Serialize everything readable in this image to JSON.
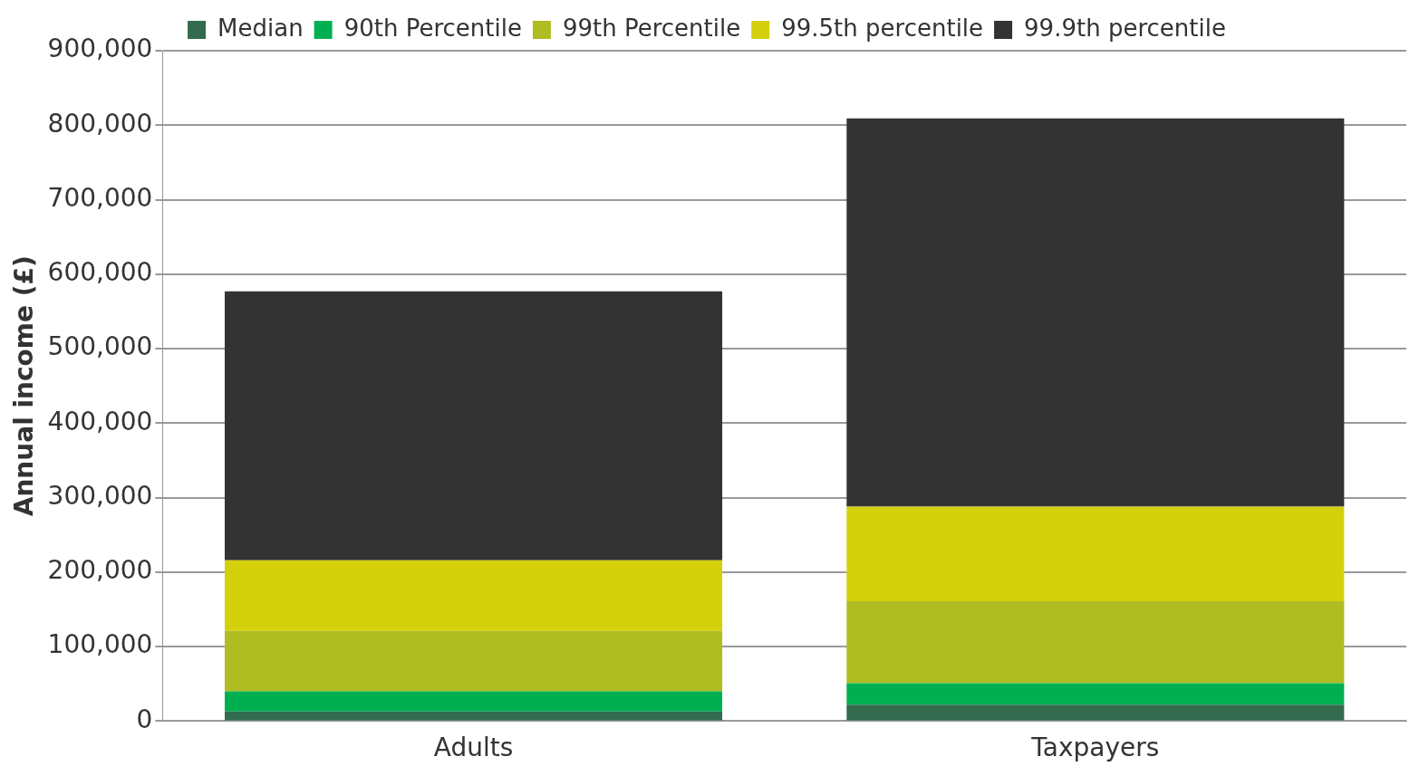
{
  "chart_data": {
    "type": "bar",
    "stacked": true,
    "ylabel": "Annual income (£)",
    "categories": [
      "Adults",
      "Taxpayers"
    ],
    "series": [
      {
        "name": "Median",
        "color": "#336b4f",
        "values": [
          13000,
          22000
        ]
      },
      {
        "name": "90th Percentile",
        "color": "#00b050",
        "values": [
          27000,
          29000
        ]
      },
      {
        "name": "99th Percentile",
        "color": "#afbc22",
        "values": [
          81000,
          110000
        ]
      },
      {
        "name": "99.5th percentile",
        "color": "#d4d00c",
        "values": [
          95000,
          127000
        ]
      },
      {
        "name": "99.9th percentile",
        "color": "#333333",
        "values": [
          361000,
          521000
        ]
      }
    ],
    "ylim": [
      0,
      900000
    ],
    "yticks": [
      {
        "value": 0,
        "label": "0"
      },
      {
        "value": 100000,
        "label": "100,000"
      },
      {
        "value": 200000,
        "label": "200,000"
      },
      {
        "value": 300000,
        "label": "300,000"
      },
      {
        "value": 400000,
        "label": "400,000"
      },
      {
        "value": 500000,
        "label": "500,000"
      },
      {
        "value": 600000,
        "label": "600,000"
      },
      {
        "value": 700000,
        "label": "700,000"
      },
      {
        "value": 800000,
        "label": "800,000"
      },
      {
        "value": 900000,
        "label": "900,000"
      }
    ],
    "grid": "y",
    "legend": "top"
  }
}
